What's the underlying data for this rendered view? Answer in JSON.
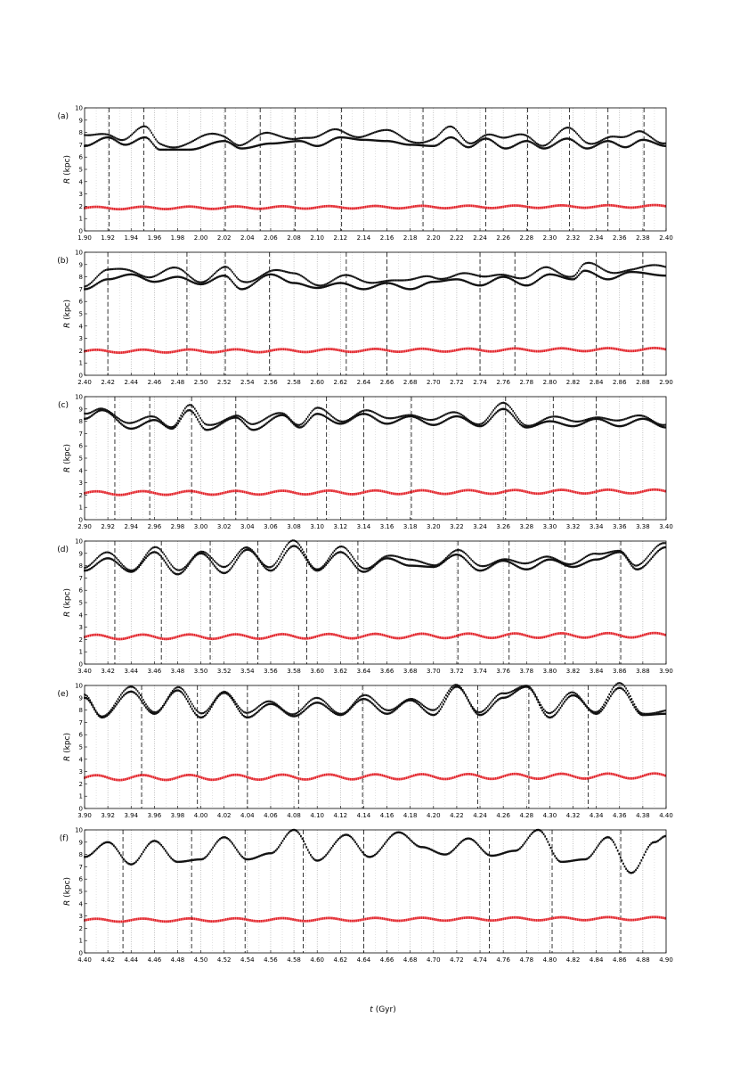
{
  "chart_data": {
    "type": "scatter",
    "xlabel_var": "t",
    "xlabel_unit": "(Gyr)",
    "ylabel_var": "R",
    "ylabel_unit": "(kpc)",
    "ylim": [
      0,
      10
    ],
    "yticks": [
      0,
      1,
      2,
      3,
      4,
      5,
      6,
      7,
      8,
      9,
      10
    ],
    "colors": {
      "outer": "#111111",
      "inner": "#e3242b",
      "dashed": "#222222",
      "dotted": "#9a9a9a"
    },
    "panels": [
      {
        "label": "(a)",
        "xlim": [
          1.9,
          2.4
        ],
        "xticks": [
          "1.90",
          "1.92",
          "1.94",
          "1.96",
          "1.98",
          "2.00",
          "2.02",
          "2.04",
          "2.06",
          "2.08",
          "2.10",
          "2.12",
          "2.14",
          "2.16",
          "2.18",
          "2.20",
          "2.22",
          "2.24",
          "2.26",
          "2.28",
          "2.30",
          "2.32",
          "2.34",
          "2.36",
          "2.38",
          "2.40"
        ],
        "dashed_t": [
          1.921,
          1.951,
          2.021,
          2.051,
          2.081,
          2.121,
          2.191,
          2.245,
          2.281,
          2.317,
          2.35,
          2.381
        ],
        "outer_keys": [
          [
            1.9,
            6.9
          ],
          [
            1.92,
            7.6
          ],
          [
            1.935,
            7.0
          ],
          [
            1.952,
            7.6
          ],
          [
            1.965,
            6.6
          ],
          [
            1.99,
            6.6
          ],
          [
            2.02,
            7.3
          ],
          [
            2.035,
            6.7
          ],
          [
            2.06,
            7.1
          ],
          [
            2.085,
            7.3
          ],
          [
            2.1,
            6.9
          ],
          [
            2.12,
            7.6
          ],
          [
            2.14,
            7.4
          ],
          [
            2.16,
            7.3
          ],
          [
            2.18,
            7.0
          ],
          [
            2.2,
            6.9
          ],
          [
            2.215,
            7.6
          ],
          [
            2.23,
            6.8
          ],
          [
            2.245,
            7.5
          ],
          [
            2.262,
            6.7
          ],
          [
            2.28,
            7.3
          ],
          [
            2.295,
            6.7
          ],
          [
            2.315,
            7.5
          ],
          [
            2.332,
            6.7
          ],
          [
            2.35,
            7.3
          ],
          [
            2.365,
            6.8
          ],
          [
            2.38,
            7.4
          ],
          [
            2.4,
            6.9
          ]
        ],
        "outer_offset": 0.9,
        "inner_base": 1.85,
        "inner_amp": 0.1,
        "inner_period": 0.04
      },
      {
        "label": "(b)",
        "xlim": [
          2.4,
          2.9
        ],
        "xticks": [
          "2.40",
          "2.42",
          "2.44",
          "2.46",
          "2.48",
          "2.50",
          "2.52",
          "2.54",
          "2.56",
          "2.58",
          "2.60",
          "2.62",
          "2.64",
          "2.66",
          "2.68",
          "2.70",
          "2.72",
          "2.74",
          "2.76",
          "2.78",
          "2.80",
          "2.82",
          "2.84",
          "2.86",
          "2.88",
          "2.90"
        ],
        "dashed_t": [
          2.42,
          2.488,
          2.521,
          2.559,
          2.625,
          2.66,
          2.74,
          2.77,
          2.84,
          2.88
        ],
        "outer_keys": [
          [
            2.4,
            7.0
          ],
          [
            2.42,
            7.8
          ],
          [
            2.44,
            8.2
          ],
          [
            2.46,
            7.6
          ],
          [
            2.48,
            8.0
          ],
          [
            2.5,
            7.4
          ],
          [
            2.52,
            8.1
          ],
          [
            2.535,
            7.0
          ],
          [
            2.56,
            8.2
          ],
          [
            2.58,
            7.5
          ],
          [
            2.6,
            7.1
          ],
          [
            2.62,
            7.5
          ],
          [
            2.64,
            7.0
          ],
          [
            2.66,
            7.5
          ],
          [
            2.68,
            7.0
          ],
          [
            2.7,
            7.6
          ],
          [
            2.72,
            7.8
          ],
          [
            2.74,
            7.3
          ],
          [
            2.76,
            8.0
          ],
          [
            2.78,
            7.3
          ],
          [
            2.8,
            8.2
          ],
          [
            2.82,
            7.8
          ],
          [
            2.83,
            8.5
          ],
          [
            2.85,
            7.8
          ],
          [
            2.87,
            8.4
          ],
          [
            2.9,
            8.1
          ]
        ],
        "outer_offset": 0.8,
        "inner_base": 1.95,
        "inner_amp": 0.12,
        "inner_period": 0.04
      },
      {
        "label": "(c)",
        "xlim": [
          2.9,
          3.4
        ],
        "xticks": [
          "2.90",
          "2.92",
          "2.94",
          "2.96",
          "2.98",
          "3.00",
          "3.02",
          "3.04",
          "3.06",
          "3.08",
          "3.10",
          "3.12",
          "3.14",
          "3.16",
          "3.18",
          "3.20",
          "3.22",
          "3.24",
          "3.26",
          "3.28",
          "3.30",
          "3.32",
          "3.34",
          "3.36",
          "3.38",
          "3.40"
        ],
        "dashed_t": [
          2.926,
          2.956,
          2.992,
          3.03,
          3.108,
          3.14,
          3.181,
          3.262,
          3.303,
          3.34
        ],
        "outer_keys": [
          [
            2.9,
            8.2
          ],
          [
            2.915,
            8.9
          ],
          [
            2.94,
            7.4
          ],
          [
            2.96,
            8.1
          ],
          [
            2.975,
            7.4
          ],
          [
            2.99,
            8.9
          ],
          [
            3.005,
            7.3
          ],
          [
            3.03,
            8.3
          ],
          [
            3.045,
            7.3
          ],
          [
            3.07,
            8.5
          ],
          [
            3.085,
            7.5
          ],
          [
            3.1,
            8.6
          ],
          [
            3.12,
            7.8
          ],
          [
            3.14,
            8.6
          ],
          [
            3.16,
            7.8
          ],
          [
            3.18,
            8.4
          ],
          [
            3.2,
            7.7
          ],
          [
            3.22,
            8.4
          ],
          [
            3.24,
            7.6
          ],
          [
            3.26,
            9.0
          ],
          [
            3.28,
            7.5
          ],
          [
            3.3,
            8.0
          ],
          [
            3.32,
            7.6
          ],
          [
            3.34,
            8.2
          ],
          [
            3.36,
            7.6
          ],
          [
            3.38,
            8.2
          ],
          [
            3.4,
            7.5
          ]
        ],
        "outer_offset": 0.5,
        "inner_base": 2.15,
        "inner_amp": 0.15,
        "inner_period": 0.04
      },
      {
        "label": "(d)",
        "xlim": [
          3.4,
          3.9
        ],
        "xticks": [
          "3.40",
          "3.42",
          "3.44",
          "3.46",
          "3.48",
          "3.50",
          "3.52",
          "3.54",
          "3.56",
          "3.58",
          "3.60",
          "3.62",
          "3.64",
          "3.66",
          "3.68",
          "3.70",
          "3.72",
          "3.74",
          "3.76",
          "3.78",
          "3.80",
          "3.82",
          "3.84",
          "3.86",
          "3.88",
          "3.90"
        ],
        "dashed_t": [
          3.426,
          3.466,
          3.508,
          3.549,
          3.591,
          3.635,
          3.721,
          3.765,
          3.813,
          3.861
        ],
        "outer_keys": [
          [
            3.4,
            7.6
          ],
          [
            3.42,
            8.6
          ],
          [
            3.44,
            7.5
          ],
          [
            3.46,
            9.1
          ],
          [
            3.48,
            7.3
          ],
          [
            3.5,
            9.0
          ],
          [
            3.52,
            7.4
          ],
          [
            3.54,
            9.3
          ],
          [
            3.56,
            7.6
          ],
          [
            3.58,
            9.6
          ],
          [
            3.6,
            7.6
          ],
          [
            3.62,
            9.1
          ],
          [
            3.64,
            7.5
          ],
          [
            3.66,
            8.6
          ],
          [
            3.68,
            8.0
          ],
          [
            3.7,
            7.9
          ],
          [
            3.72,
            8.9
          ],
          [
            3.74,
            7.6
          ],
          [
            3.76,
            8.4
          ],
          [
            3.78,
            7.7
          ],
          [
            3.8,
            8.5
          ],
          [
            3.82,
            7.9
          ],
          [
            3.84,
            8.5
          ],
          [
            3.86,
            9.1
          ],
          [
            3.875,
            7.7
          ],
          [
            3.9,
            9.5
          ]
        ],
        "outer_offset": 0.5,
        "inner_base": 2.2,
        "inner_amp": 0.18,
        "inner_period": 0.04
      },
      {
        "label": "(e)",
        "xlim": [
          3.9,
          4.4
        ],
        "xticks": [
          "3.90",
          "3.92",
          "3.94",
          "3.96",
          "3.98",
          "4.00",
          "4.02",
          "4.04",
          "4.06",
          "4.08",
          "4.10",
          "4.12",
          "4.14",
          "4.16",
          "4.18",
          "4.20",
          "4.22",
          "4.24",
          "4.26",
          "4.28",
          "4.30",
          "4.32",
          "4.34",
          "4.36",
          "4.38",
          "4.40"
        ],
        "dashed_t": [
          3.949,
          3.997,
          4.04,
          4.084,
          4.139,
          4.238,
          4.282,
          4.333
        ],
        "outer_keys": [
          [
            3.9,
            9.0
          ],
          [
            3.915,
            7.4
          ],
          [
            3.94,
            9.5
          ],
          [
            3.96,
            7.7
          ],
          [
            3.98,
            9.6
          ],
          [
            4.0,
            7.4
          ],
          [
            4.02,
            9.4
          ],
          [
            4.04,
            7.4
          ],
          [
            4.06,
            8.5
          ],
          [
            4.08,
            7.5
          ],
          [
            4.1,
            8.6
          ],
          [
            4.12,
            7.6
          ],
          [
            4.14,
            8.9
          ],
          [
            4.16,
            7.7
          ],
          [
            4.18,
            8.8
          ],
          [
            4.2,
            7.6
          ],
          [
            4.22,
            9.9
          ],
          [
            4.24,
            7.6
          ],
          [
            4.26,
            9.0
          ],
          [
            4.28,
            9.9
          ],
          [
            4.3,
            7.4
          ],
          [
            4.32,
            9.2
          ],
          [
            4.34,
            7.7
          ],
          [
            4.36,
            9.8
          ],
          [
            4.38,
            7.6
          ],
          [
            4.4,
            7.7
          ]
        ],
        "outer_offset": 0.4,
        "inner_base": 2.5,
        "inner_amp": 0.2,
        "inner_period": 0.04
      },
      {
        "label": "(f)",
        "xlim": [
          4.4,
          4.9
        ],
        "xticks": [
          "4.40",
          "4.42",
          "4.44",
          "4.46",
          "4.48",
          "4.50",
          "4.52",
          "4.54",
          "4.56",
          "4.58",
          "4.60",
          "4.62",
          "4.64",
          "4.66",
          "4.68",
          "4.70",
          "4.72",
          "4.74",
          "4.76",
          "4.78",
          "4.80",
          "4.82",
          "4.84",
          "4.86",
          "4.88",
          "4.90"
        ],
        "dashed_t": [
          4.433,
          4.492,
          4.538,
          4.588,
          4.64,
          4.748,
          4.802,
          4.861
        ],
        "outer_keys": [
          [
            4.4,
            7.8
          ],
          [
            4.42,
            9.0
          ],
          [
            4.44,
            7.2
          ],
          [
            4.46,
            9.1
          ],
          [
            4.48,
            7.4
          ],
          [
            4.5,
            7.6
          ],
          [
            4.52,
            9.4
          ],
          [
            4.54,
            7.6
          ],
          [
            4.56,
            8.1
          ],
          [
            4.58,
            10.0
          ],
          [
            4.6,
            7.5
          ],
          [
            4.625,
            9.6
          ],
          [
            4.645,
            7.8
          ],
          [
            4.67,
            9.8
          ],
          [
            4.69,
            8.6
          ],
          [
            4.71,
            8.0
          ],
          [
            4.73,
            9.3
          ],
          [
            4.75,
            7.9
          ],
          [
            4.77,
            8.3
          ],
          [
            4.79,
            10.0
          ],
          [
            4.81,
            7.4
          ],
          [
            4.83,
            7.6
          ],
          [
            4.85,
            9.4
          ],
          [
            4.87,
            6.5
          ],
          [
            4.89,
            9.0
          ],
          [
            4.9,
            9.5
          ]
        ],
        "outer_offset": 0.0,
        "inner_base": 2.65,
        "inner_amp": 0.12,
        "inner_period": 0.04
      }
    ]
  }
}
